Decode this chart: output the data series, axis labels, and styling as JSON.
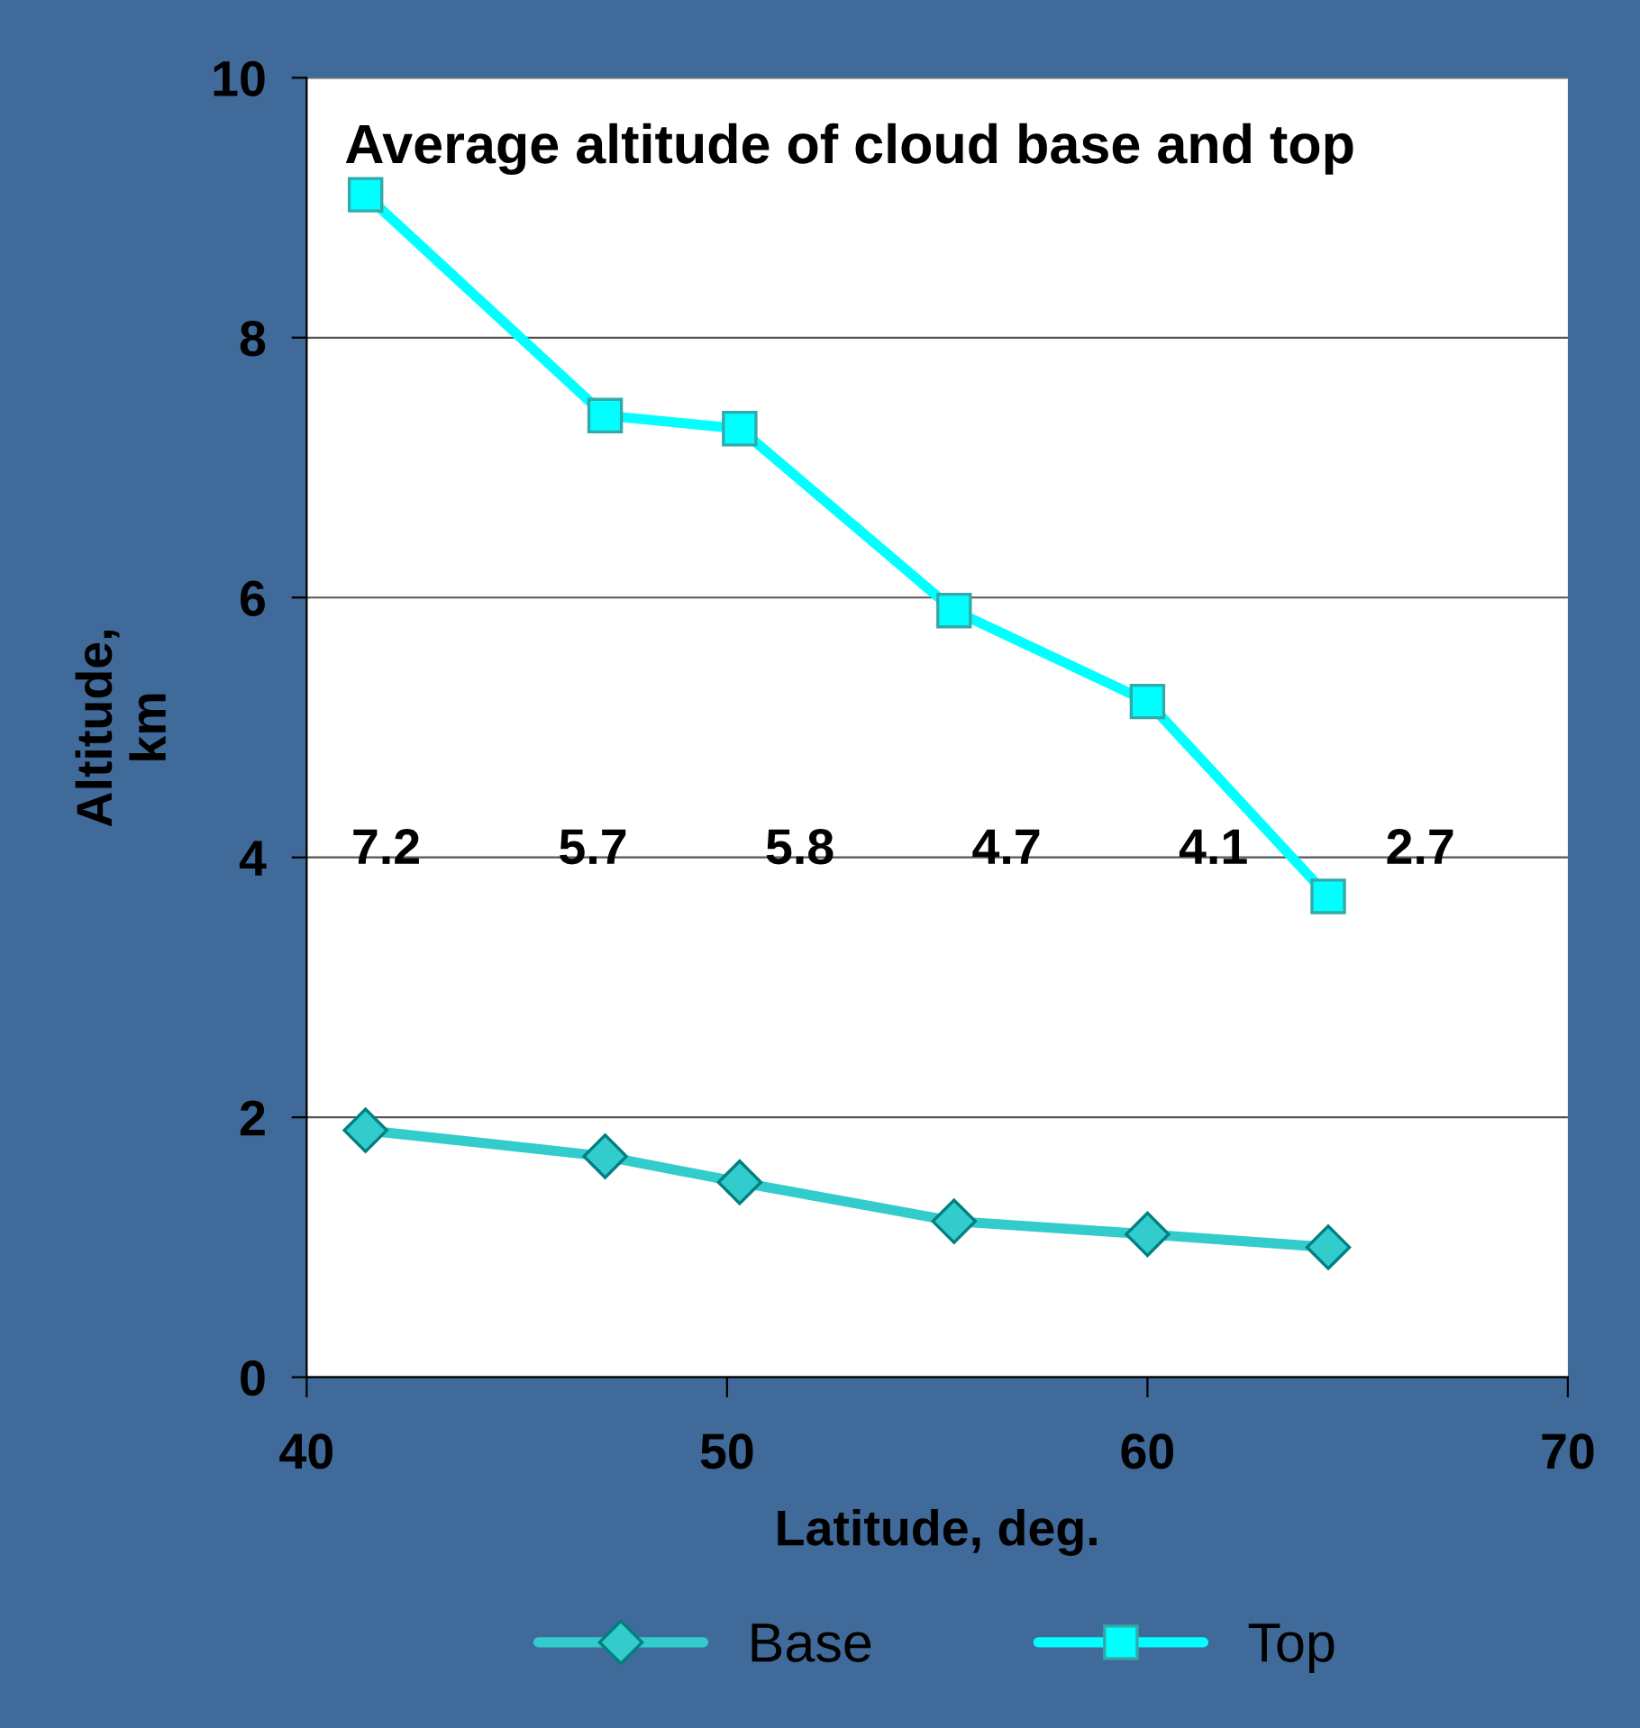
{
  "chart_data": {
    "type": "line",
    "title": "Average altitude of cloud base and top",
    "xlabel": "Latitude, deg.",
    "ylabel": "Altitude,\nkm",
    "x": [
      41.4,
      47.1,
      50.3,
      55.4,
      60.0,
      64.3
    ],
    "series": [
      {
        "name": "Base",
        "color": "#33cccc",
        "marker": "diamond",
        "values": [
          1.9,
          1.7,
          1.5,
          1.2,
          1.1,
          1.0
        ]
      },
      {
        "name": "Top",
        "color": "#00ffff",
        "marker": "square",
        "values": [
          9.1,
          7.4,
          7.3,
          5.9,
          5.2,
          3.7
        ]
      }
    ],
    "annotations": [
      "7.2",
      "5.7",
      "5.8",
      "4.7",
      "4.1",
      "2.7"
    ],
    "xlim": [
      40,
      70
    ],
    "xticks": [
      40,
      50,
      60,
      70
    ],
    "ylim": [
      0,
      10
    ],
    "yticks": [
      0,
      2,
      4,
      6,
      8,
      10
    ],
    "grid": "y",
    "legend": "bottom",
    "line_style": "solid"
  }
}
